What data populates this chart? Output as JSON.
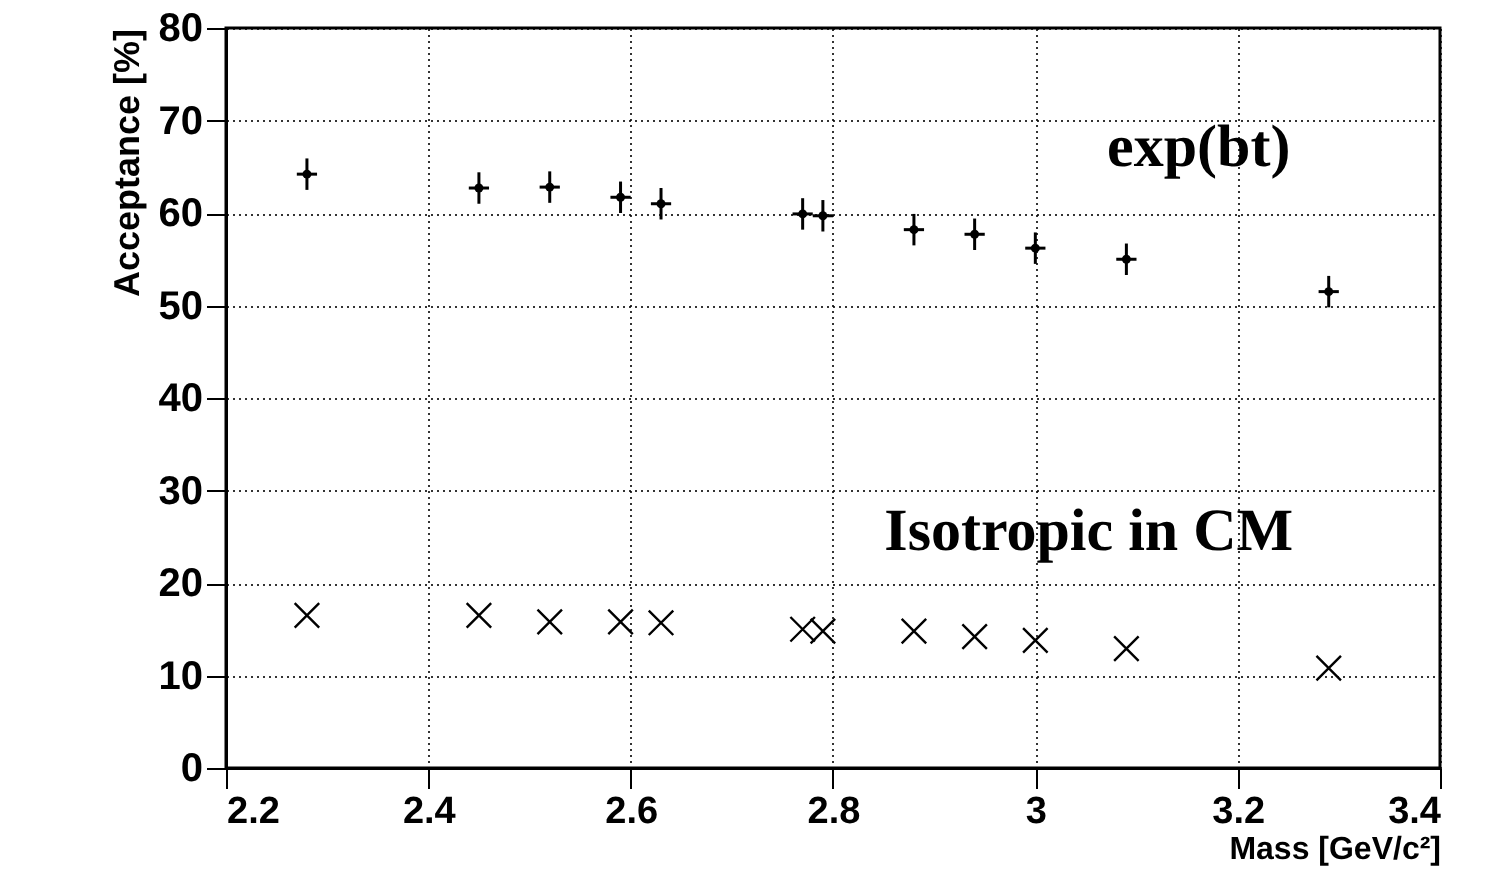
{
  "chart_data": {
    "type": "scatter",
    "xlabel": "Mass [GeV/c²]",
    "ylabel": "Acceptance [%]",
    "series": [
      {
        "name": "exp(bt)",
        "color": "#000000",
        "marker": "circle",
        "x": [
          2.28,
          2.45,
          2.52,
          2.59,
          2.63,
          2.77,
          2.79,
          2.88,
          2.94,
          3.0,
          3.09,
          3.29
        ],
        "values": [
          64.2,
          62.7,
          62.8,
          61.7,
          61.0,
          59.9,
          59.7,
          58.2,
          57.7,
          56.2,
          55.0,
          51.5
        ],
        "errors": [
          1.7,
          1.7,
          1.7,
          1.7,
          1.7,
          1.7,
          1.7,
          1.7,
          1.7,
          1.7,
          1.7,
          1.7
        ],
        "xerrors": [
          0.01,
          0.01,
          0.01,
          0.01,
          0.01,
          0.01,
          0.01,
          0.01,
          0.01,
          0.01,
          0.01,
          0.01
        ]
      },
      {
        "name": "Isotropic  in CM",
        "color": "#000000",
        "marker": "cross",
        "x": [
          2.28,
          2.45,
          2.52,
          2.59,
          2.63,
          2.77,
          2.79,
          2.88,
          2.94,
          3.0,
          3.09,
          3.29
        ],
        "values": [
          16.5,
          16.5,
          15.8,
          15.8,
          15.7,
          15.0,
          14.8,
          14.8,
          14.2,
          13.8,
          12.9,
          10.8
        ]
      }
    ],
    "xlim": [
      2.2,
      3.4
    ],
    "xticks": [
      2.2,
      2.4,
      2.6,
      2.8,
      3,
      3.2,
      3.4
    ],
    "ylim": [
      0,
      80
    ],
    "yticks": [
      0,
      10,
      20,
      30,
      40,
      50,
      60,
      70,
      80
    ],
    "grid": true,
    "line_style": "dotted"
  }
}
